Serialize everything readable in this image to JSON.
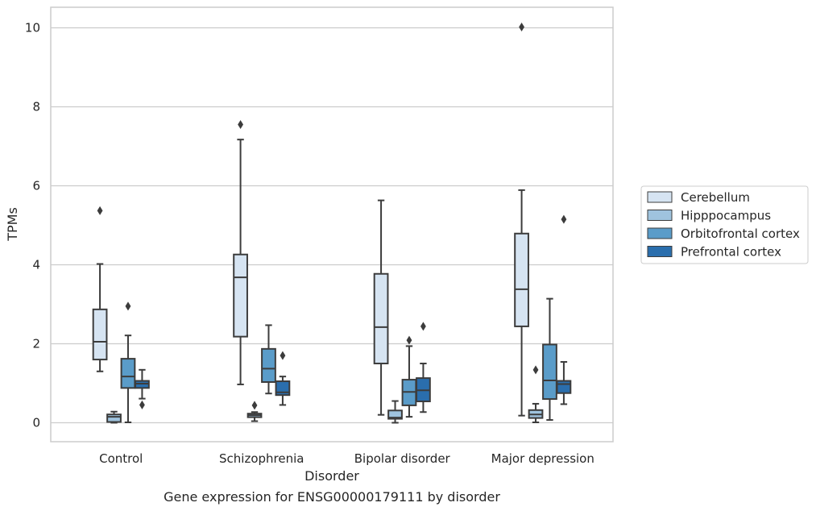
{
  "chart_data": {
    "type": "boxplot",
    "title": "",
    "caption": "Gene expression for ENSG00000179111 by disorder",
    "xlabel": "Disorder",
    "ylabel": "TPMs",
    "ylim": [
      -0.48,
      10.52
    ],
    "yticks": [
      0,
      2,
      4,
      6,
      8,
      10
    ],
    "grid": "horizontal",
    "legend_position": "right",
    "categories": [
      "Control",
      "Schizophrenia",
      "Bipolar disorder",
      "Major depression"
    ],
    "series": [
      {
        "name": "Cerebellum",
        "color": "#d6e4f2",
        "boxes": [
          {
            "whislo": 1.3,
            "q1": 1.6,
            "med": 2.05,
            "q3": 2.87,
            "whishi": 4.02,
            "fliers": [
              5.37
            ]
          },
          {
            "whislo": 0.97,
            "q1": 2.18,
            "med": 3.68,
            "q3": 4.26,
            "whishi": 7.17,
            "fliers": [
              7.55
            ]
          },
          {
            "whislo": 0.2,
            "q1": 1.5,
            "med": 2.42,
            "q3": 3.77,
            "whishi": 5.63,
            "fliers": []
          },
          {
            "whislo": 0.18,
            "q1": 2.44,
            "med": 3.38,
            "q3": 4.79,
            "whishi": 5.89,
            "fliers": [
              10.02
            ]
          }
        ]
      },
      {
        "name": "Hipppocampus",
        "color": "#9fc3de",
        "boxes": [
          {
            "whislo": 0.0,
            "q1": 0.02,
            "med": 0.15,
            "q3": 0.21,
            "whishi": 0.28,
            "fliers": []
          },
          {
            "whislo": 0.04,
            "q1": 0.14,
            "med": 0.19,
            "q3": 0.23,
            "whishi": 0.27,
            "fliers": [
              0.44
            ]
          },
          {
            "whislo": 0.0,
            "q1": 0.1,
            "med": 0.13,
            "q3": 0.31,
            "whishi": 0.55,
            "fliers": []
          },
          {
            "whislo": 0.01,
            "q1": 0.12,
            "med": 0.21,
            "q3": 0.32,
            "whishi": 0.48,
            "fliers": [
              1.34
            ]
          }
        ]
      },
      {
        "name": "Orbitofrontal cortex",
        "color": "#5a9cc9",
        "boxes": [
          {
            "whislo": 0.01,
            "q1": 0.88,
            "med": 1.17,
            "q3": 1.62,
            "whishi": 2.21,
            "fliers": [
              2.95
            ]
          },
          {
            "whislo": 0.74,
            "q1": 1.03,
            "med": 1.37,
            "q3": 1.87,
            "whishi": 2.47,
            "fliers": []
          },
          {
            "whislo": 0.15,
            "q1": 0.44,
            "med": 0.78,
            "q3": 1.09,
            "whishi": 1.94,
            "fliers": [
              2.09
            ]
          },
          {
            "whislo": 0.07,
            "q1": 0.6,
            "med": 1.07,
            "q3": 1.98,
            "whishi": 3.14,
            "fliers": []
          }
        ]
      },
      {
        "name": "Prefrontal cortex",
        "color": "#2a6ead",
        "boxes": [
          {
            "whislo": 0.61,
            "q1": 0.88,
            "med": 0.99,
            "q3": 1.06,
            "whishi": 1.34,
            "fliers": [
              0.45
            ]
          },
          {
            "whislo": 0.45,
            "q1": 0.7,
            "med": 0.77,
            "q3": 1.05,
            "whishi": 1.17,
            "fliers": [
              1.7
            ]
          },
          {
            "whislo": 0.27,
            "q1": 0.54,
            "med": 0.82,
            "q3": 1.13,
            "whishi": 1.5,
            "fliers": [
              2.44
            ]
          },
          {
            "whislo": 0.47,
            "q1": 0.75,
            "med": 0.98,
            "q3": 1.06,
            "whishi": 1.54,
            "fliers": [
              5.15
            ]
          }
        ]
      }
    ]
  },
  "style": {
    "axes_edge_color": "#cccccc",
    "grid_color": "#cccccc",
    "line_color": "#3c3c3c",
    "text_color": "#262626"
  }
}
